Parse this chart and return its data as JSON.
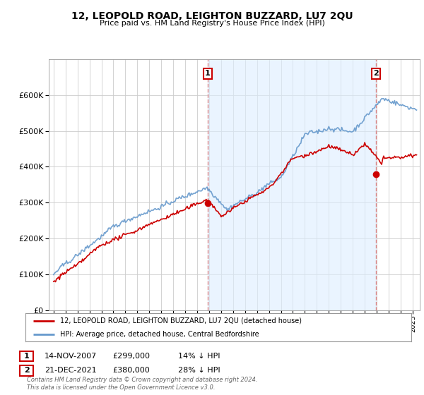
{
  "title": "12, LEOPOLD ROAD, LEIGHTON BUZZARD, LU7 2QU",
  "subtitle": "Price paid vs. HM Land Registry's House Price Index (HPI)",
  "legend_label_red": "12, LEOPOLD ROAD, LEIGHTON BUZZARD, LU7 2QU (detached house)",
  "legend_label_blue": "HPI: Average price, detached house, Central Bedfordshire",
  "footnote": "Contains HM Land Registry data © Crown copyright and database right 2024.\nThis data is licensed under the Open Government Licence v3.0.",
  "point1_label": "1",
  "point1_date": "14-NOV-2007",
  "point1_price": "£299,000",
  "point1_hpi": "14% ↓ HPI",
  "point2_label": "2",
  "point2_date": "21-DEC-2021",
  "point2_price": "£380,000",
  "point2_hpi": "28% ↓ HPI",
  "color_red": "#cc0000",
  "color_blue": "#6699cc",
  "color_dashed": "#dd8888",
  "color_shade": "#ddeeff",
  "ylim": [
    0,
    700000
  ],
  "yticks": [
    0,
    100000,
    200000,
    300000,
    400000,
    500000,
    600000
  ],
  "background_color": "#ffffff",
  "grid_color": "#cccccc",
  "t1_year": 2007.875,
  "t2_year": 2021.958
}
